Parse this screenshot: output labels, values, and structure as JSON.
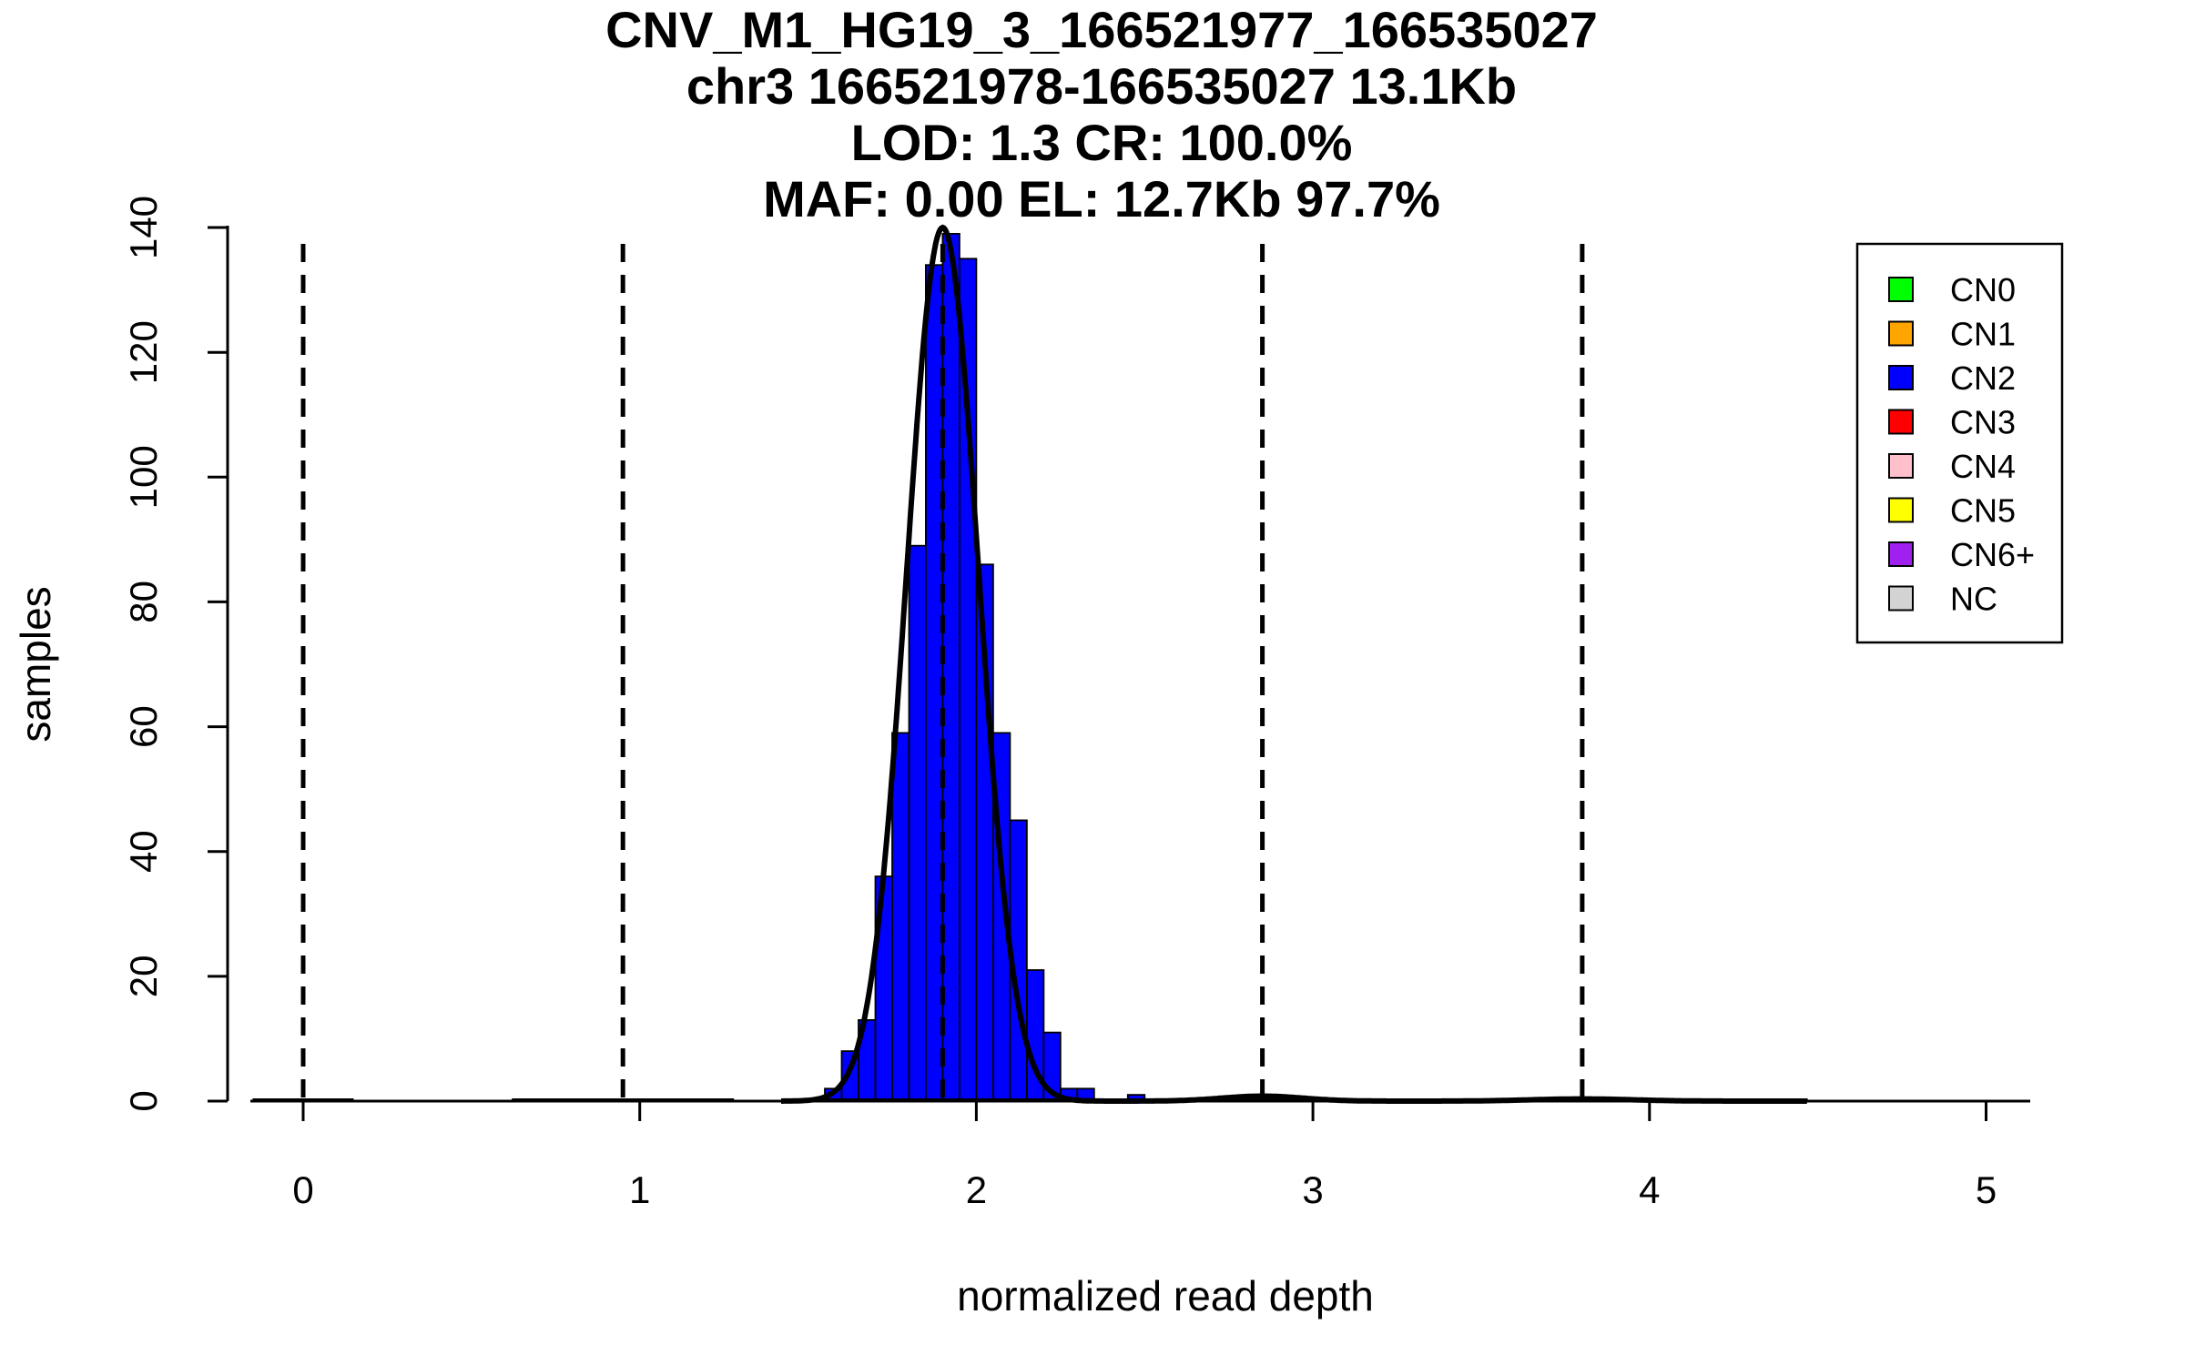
{
  "chart_data": {
    "type": "bar",
    "title_lines": [
      "CNV_M1_HG19_3_166521977_166535027",
      "chr3 166521978-166535027 13.1Kb",
      "LOD: 1.3 CR: 100.0%",
      "MAF: 0.00 EL: 12.7Kb 97.7%"
    ],
    "xlabel": "normalized read depth",
    "ylabel": "samples",
    "xlim": [
      -0.15,
      5.12
    ],
    "ylim": [
      0,
      140
    ],
    "x_ticks": [
      "0",
      "1",
      "2",
      "3",
      "4",
      "5"
    ],
    "y_ticks": [
      "0",
      "20",
      "40",
      "60",
      "80",
      "100",
      "120",
      "140"
    ],
    "bin_width": 0.05,
    "histogram": {
      "bin_starts": [
        1.55,
        1.6,
        1.65,
        1.7,
        1.75,
        1.8,
        1.85,
        1.9,
        1.95,
        2.0,
        2.05,
        2.1,
        2.15,
        2.2,
        2.25,
        2.3,
        2.45
      ],
      "counts": [
        2,
        8,
        13,
        36,
        59,
        89,
        134,
        139,
        135,
        86,
        59,
        45,
        21,
        11,
        2,
        2,
        1
      ],
      "color": "#0000ff"
    },
    "cn_markers": [
      0.0,
      0.95,
      1.9,
      2.85,
      3.8
    ],
    "density_peaks": [
      {
        "mean": 1.9,
        "sd": 0.107,
        "height": 140
      },
      {
        "mean": 2.85,
        "sd": 0.12,
        "height": 0.8
      },
      {
        "mean": 3.8,
        "sd": 0.15,
        "height": 0.35
      }
    ],
    "baseline_segments": [
      [
        -0.15,
        0.15
      ],
      [
        0.62,
        1.28
      ],
      [
        1.42,
        2.47
      ],
      [
        2.72,
        2.98
      ],
      [
        3.62,
        4.47
      ]
    ],
    "legend": {
      "position": "top-right",
      "items": [
        {
          "label": "CN0",
          "color": "#00ff00"
        },
        {
          "label": "CN1",
          "color": "#ffa500"
        },
        {
          "label": "CN2",
          "color": "#0000ff"
        },
        {
          "label": "CN3",
          "color": "#ff0000"
        },
        {
          "label": "CN4",
          "color": "#ffc0cb"
        },
        {
          "label": "CN5",
          "color": "#ffff00"
        },
        {
          "label": "CN6+",
          "color": "#a020f0"
        },
        {
          "label": "NC",
          "color": "#d3d3d3"
        }
      ]
    }
  }
}
